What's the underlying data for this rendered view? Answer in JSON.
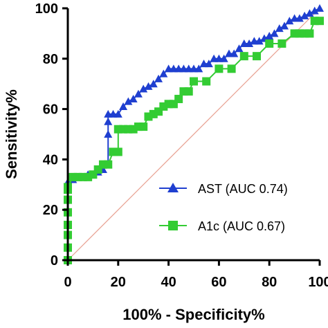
{
  "chart_data": {
    "type": "line",
    "title": "",
    "xlabel": "100% - Specificity%",
    "ylabel": "Sensitivity%",
    "xlim": [
      0,
      100
    ],
    "ylim": [
      0,
      100
    ],
    "xticks": [
      0,
      20,
      40,
      60,
      80,
      100
    ],
    "yticks": [
      0,
      20,
      40,
      60,
      80,
      100
    ],
    "xtick_labels": [
      "0",
      "20",
      "40",
      "60",
      "80",
      "100"
    ],
    "ytick_labels": [
      "0",
      "20",
      "40",
      "60",
      "80",
      "100"
    ],
    "grid": false,
    "legend_position": "bottom-right",
    "reference_line": {
      "from": [
        0,
        0
      ],
      "to": [
        100,
        100
      ],
      "color": "#e8a090"
    },
    "series": [
      {
        "name": "AST (AUC 0.74)",
        "color": "#1f3fd0",
        "marker": "triangle",
        "x": [
          0,
          0,
          0,
          0,
          0,
          0,
          0,
          0,
          0,
          0,
          0,
          2,
          4,
          6,
          8,
          10,
          12,
          14,
          16,
          16,
          16,
          16,
          18,
          20,
          22,
          24,
          26,
          28,
          30,
          32,
          34,
          36,
          38,
          40,
          42,
          44,
          46,
          48,
          50,
          52,
          54,
          56,
          58,
          60,
          62,
          64,
          66,
          68,
          70,
          72,
          74,
          76,
          78,
          80,
          82,
          84,
          86,
          88,
          90,
          92,
          94,
          96,
          98,
          100
        ],
        "y": [
          0,
          5,
          10,
          14,
          19,
          24,
          28,
          30,
          30,
          31,
          31,
          32,
          33,
          33,
          34,
          34,
          35,
          36,
          38,
          50,
          55,
          58,
          58,
          58,
          61,
          63,
          64,
          66,
          68,
          69,
          70,
          72,
          74,
          76,
          76,
          76,
          76,
          76,
          76,
          76,
          78,
          78,
          80,
          80,
          80,
          82,
          82,
          84,
          86,
          86,
          87,
          87,
          88,
          89,
          90,
          92,
          93,
          95,
          96,
          96,
          97,
          98,
          99,
          100
        ]
      },
      {
        "name": "A1c (AUC 0.67)",
        "color": "#33cc33",
        "marker": "square",
        "x": [
          0,
          0,
          0,
          0,
          0,
          0,
          0,
          0,
          0,
          2,
          4,
          6,
          8,
          10,
          12,
          14,
          16,
          18,
          20,
          20,
          22,
          24,
          26,
          28,
          30,
          32,
          34,
          36,
          38,
          40,
          42,
          44,
          46,
          48,
          50,
          55,
          60,
          65,
          70,
          75,
          80,
          85,
          90,
          92,
          94,
          96,
          98,
          100
        ],
        "y": [
          0,
          5,
          10,
          14,
          19,
          24,
          28,
          29,
          29,
          33,
          33,
          33,
          33,
          34,
          36,
          38,
          38,
          43,
          43,
          52,
          52,
          52,
          52,
          53,
          53,
          57,
          58,
          59,
          61,
          62,
          62,
          64,
          67,
          67,
          71,
          71,
          76,
          76,
          81,
          81,
          86,
          86,
          90,
          90,
          90,
          90,
          95,
          95
        ]
      }
    ]
  }
}
